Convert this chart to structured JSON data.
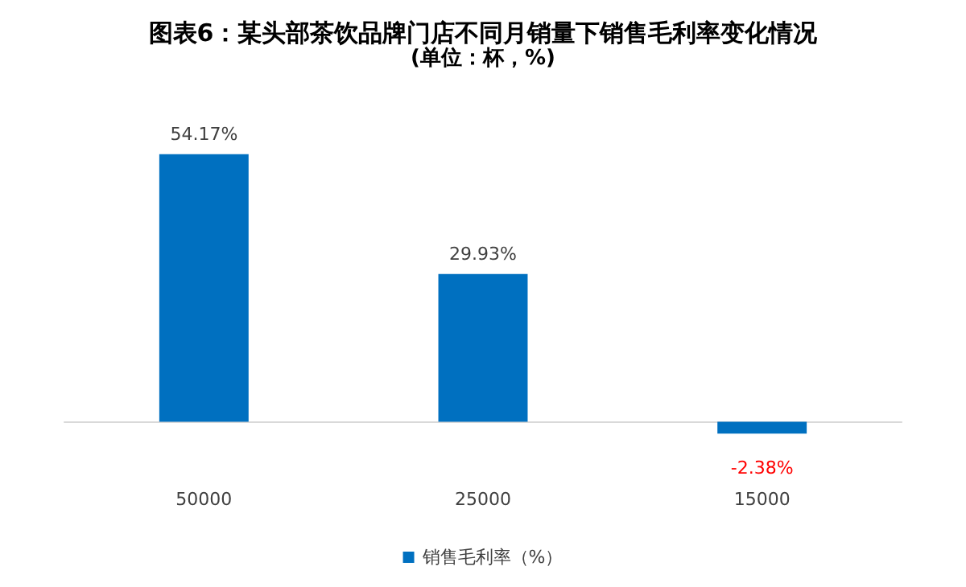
{
  "chart_data": {
    "type": "bar",
    "title": "图表6：某头部茶饮品牌门店不同月销量下销售毛利率变化情况",
    "subtitle": "(单位：杯，%)",
    "categories": [
      "50000",
      "25000",
      "15000"
    ],
    "series": [
      {
        "name": "销售毛利率（%）",
        "color": "#0070c0",
        "values": [
          54.17,
          29.93,
          -2.38
        ],
        "value_labels": [
          "54.17%",
          "29.93%",
          "-2.38%"
        ]
      }
    ],
    "legend": "bottom",
    "grid": false
  }
}
